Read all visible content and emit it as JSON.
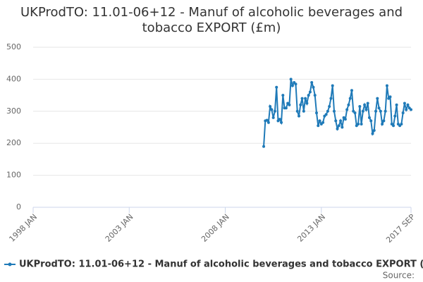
{
  "chart_data": {
    "type": "line",
    "title": [
      "UKProdTO: 11.01-06+12 - Manuf of alcoholic beverages and",
      "tobacco EXPORT (£m)"
    ],
    "source": "Source:",
    "x": [
      "2010 JAN",
      "2010 FEB",
      "2010 MAR",
      "2010 APR",
      "2010 MAY",
      "2010 JUN",
      "2010 JUL",
      "2010 AUG",
      "2010 SEP",
      "2010 OCT",
      "2010 NOV",
      "2010 DEC",
      "2011 JAN",
      "2011 FEB",
      "2011 MAR",
      "2011 APR",
      "2011 MAY",
      "2011 JUN",
      "2011 JUL",
      "2011 AUG",
      "2011 SEP",
      "2011 OCT",
      "2011 NOV",
      "2011 DEC",
      "2012 JAN",
      "2012 FEB",
      "2012 MAR",
      "2012 APR",
      "2012 MAY",
      "2012 JUN",
      "2012 JUL",
      "2012 AUG",
      "2012 SEP",
      "2012 OCT",
      "2012 NOV",
      "2012 DEC",
      "2013 JAN",
      "2013 FEB",
      "2013 MAR",
      "2013 APR",
      "2013 MAY",
      "2013 JUN",
      "2013 JUL",
      "2013 AUG",
      "2013 SEP",
      "2013 OCT",
      "2013 NOV",
      "2013 DEC",
      "2014 JAN",
      "2014 FEB",
      "2014 MAR",
      "2014 APR",
      "2014 MAY",
      "2014 JUN",
      "2014 JUL",
      "2014 AUG",
      "2014 SEP",
      "2014 OCT",
      "2014 NOV",
      "2014 DEC",
      "2015 JAN",
      "2015 FEB",
      "2015 MAR",
      "2015 APR",
      "2015 MAY",
      "2015 JUN",
      "2015 JUL",
      "2015 AUG",
      "2015 SEP",
      "2015 OCT",
      "2015 NOV",
      "2015 DEC",
      "2016 JAN",
      "2016 FEB",
      "2016 MAR",
      "2016 APR",
      "2016 MAY",
      "2016 JUN",
      "2016 JUL",
      "2016 AUG",
      "2016 SEP",
      "2016 OCT",
      "2016 NOV",
      "2016 DEC",
      "2017 JAN",
      "2017 FEB",
      "2017 MAR",
      "2017 APR",
      "2017 MAY",
      "2017 JUN",
      "2017 JUL",
      "2017 AUG",
      "2017 SEP"
    ],
    "series": [
      {
        "name": "UKProdTO: 11.01-06+12 - Manuf of alcoholic beverages and tobacco EXPORT (£m)",
        "color": "#1f7ab8",
        "values": [
          190,
          270,
          272,
          265,
          315,
          305,
          280,
          300,
          375,
          270,
          275,
          265,
          350,
          310,
          310,
          325,
          320,
          400,
          380,
          390,
          385,
          300,
          285,
          320,
          340,
          300,
          340,
          325,
          350,
          360,
          390,
          375,
          350,
          295,
          255,
          270,
          260,
          265,
          285,
          290,
          300,
          315,
          340,
          380,
          300,
          270,
          245,
          255,
          270,
          250,
          280,
          275,
          305,
          320,
          340,
          365,
          300,
          295,
          255,
          260,
          315,
          260,
          300,
          320,
          305,
          325,
          280,
          270,
          230,
          240,
          300,
          340,
          310,
          300,
          260,
          270,
          300,
          380,
          340,
          345,
          260,
          255,
          285,
          320,
          260,
          255,
          260,
          295,
          325,
          305,
          320,
          310,
          305
        ]
      }
    ],
    "xlim": [
      "1998 JAN",
      "2017 SEP"
    ],
    "xticks": [
      "1998 JAN",
      "2003 JAN",
      "2008 JAN",
      "2013 JAN",
      "2017 SEP"
    ],
    "ylim": [
      0,
      500
    ],
    "yticks": [
      0,
      100,
      200,
      300,
      400,
      500
    ],
    "grid": true
  }
}
